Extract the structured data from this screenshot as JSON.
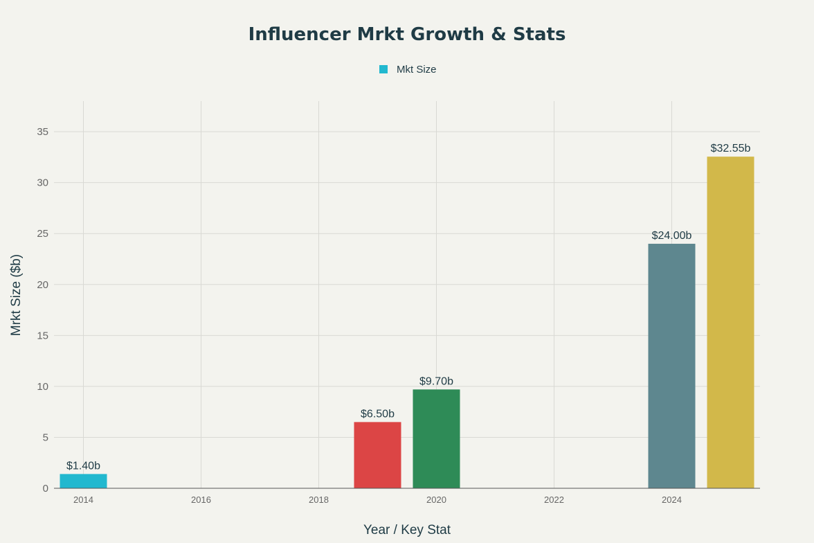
{
  "chart_data": {
    "type": "bar",
    "title": "Influencer Mrkt Growth & Stats",
    "xlabel": "Year / Key Stat",
    "ylabel": "Mrkt Size ($b)",
    "legend": {
      "placement": "top-center",
      "entries": [
        {
          "name": "Mkt Size",
          "color": "#22b8cf"
        }
      ]
    },
    "grid": true,
    "xlim": [
      2013.5,
      2025.5
    ],
    "ylim": [
      0,
      38
    ],
    "x_ticks": [
      2014,
      2016,
      2018,
      2020,
      2022,
      2024
    ],
    "y_ticks": [
      0,
      5,
      10,
      15,
      20,
      25,
      30,
      35
    ],
    "bars": [
      {
        "x": 2014,
        "value": 1.4,
        "label": "$1.40b",
        "color": "#22b8cf"
      },
      {
        "x": 2019,
        "value": 6.5,
        "label": "$6.50b",
        "color": "#dc4545"
      },
      {
        "x": 2020,
        "value": 9.7,
        "label": "$9.70b",
        "color": "#2e8b57"
      },
      {
        "x": 2024,
        "value": 24.0,
        "label": "$24.00b",
        "color": "#5e878f"
      },
      {
        "x": 2025,
        "value": 32.55,
        "label": "$32.55b",
        "color": "#d2b84a"
      }
    ]
  }
}
